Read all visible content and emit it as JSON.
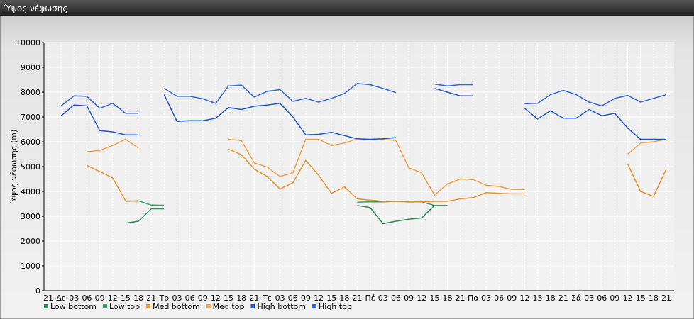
{
  "chart_data": {
    "type": "line",
    "title": "Ύψος νέφωσης",
    "ylabel": "Ύψος νέφωσης (m)",
    "categories": [
      "21",
      "Δε",
      "03",
      "06",
      "09",
      "12",
      "15",
      "18",
      "21",
      "Τρ",
      "03",
      "06",
      "09",
      "12",
      "15",
      "18",
      "21",
      "Τε",
      "03",
      "06",
      "09",
      "12",
      "15",
      "18",
      "21",
      "Πέ",
      "03",
      "06",
      "09",
      "12",
      "15",
      "18",
      "21",
      "Πα",
      "03",
      "06",
      "09",
      "12",
      "15",
      "18",
      "21",
      "Σά",
      "03",
      "06",
      "09",
      "12",
      "15",
      "18",
      "21"
    ],
    "ylim": [
      0,
      10000
    ],
    "yticks": [
      0,
      1000,
      2000,
      3000,
      4000,
      5000,
      6000,
      7000,
      8000,
      9000,
      10000
    ],
    "grid": true,
    "series": [
      {
        "name": "Low bottom",
        "color": "#2e8b57",
        "values": [
          null,
          null,
          null,
          null,
          null,
          null,
          2720,
          2800,
          3300,
          3300,
          null,
          null,
          null,
          null,
          null,
          null,
          null,
          null,
          null,
          null,
          null,
          null,
          null,
          null,
          3430,
          3350,
          2700,
          2800,
          2880,
          2930,
          3430,
          3430,
          null,
          null,
          null,
          null,
          null,
          null,
          null,
          null,
          null,
          null,
          null,
          null,
          null,
          null,
          null,
          null,
          null
        ]
      },
      {
        "name": "Low top",
        "color": "#3a9a66",
        "values": [
          null,
          null,
          null,
          null,
          null,
          null,
          3600,
          3620,
          3450,
          3440,
          null,
          null,
          null,
          null,
          null,
          null,
          null,
          null,
          null,
          null,
          null,
          null,
          null,
          null,
          3570,
          3580,
          3580,
          3600,
          3580,
          3580,
          3430,
          3430,
          null,
          null,
          null,
          null,
          null,
          null,
          null,
          null,
          null,
          null,
          null,
          null,
          null,
          null,
          null,
          null,
          null
        ]
      },
      {
        "name": "Med bottom",
        "color": "#e8922e",
        "values": [
          null,
          null,
          null,
          5050,
          4800,
          4550,
          3620,
          3600,
          null,
          null,
          null,
          null,
          null,
          null,
          5700,
          5480,
          4900,
          4600,
          4100,
          4350,
          5250,
          4650,
          3920,
          4180,
          3700,
          3650,
          3600,
          3600,
          3600,
          3580,
          3600,
          3600,
          3700,
          3750,
          3950,
          3920,
          3900,
          3900,
          null,
          null,
          null,
          null,
          null,
          null,
          null,
          5100,
          4000,
          3800,
          4900
        ]
      },
      {
        "name": "Med top",
        "color": "#f0a04a",
        "values": [
          null,
          null,
          null,
          5600,
          5650,
          5850,
          6100,
          5750,
          null,
          null,
          null,
          null,
          null,
          null,
          6100,
          6050,
          5150,
          4980,
          4600,
          4750,
          6100,
          6100,
          5850,
          5950,
          6120,
          6100,
          6100,
          6050,
          4950,
          4750,
          3850,
          4300,
          4500,
          4480,
          4250,
          4200,
          4080,
          4080,
          null,
          null,
          null,
          null,
          null,
          null,
          null,
          5500,
          5950,
          6000,
          6100
        ]
      },
      {
        "name": "High bottom",
        "color": "#2255cc",
        "values": [
          null,
          7050,
          7480,
          7450,
          6450,
          6400,
          6280,
          6280,
          null,
          7900,
          6820,
          6850,
          6850,
          6950,
          7380,
          7300,
          7430,
          7480,
          7550,
          7000,
          6280,
          6300,
          6380,
          6250,
          6120,
          6100,
          6120,
          6170,
          null,
          null,
          8150,
          8000,
          7850,
          7850,
          null,
          null,
          null,
          7350,
          6920,
          7250,
          6950,
          6950,
          7300,
          7050,
          7150,
          6550,
          6100,
          6100,
          6100
        ]
      },
      {
        "name": "High top",
        "color": "#3366dd",
        "values": [
          null,
          7450,
          7850,
          7830,
          7350,
          7550,
          7150,
          7150,
          null,
          8150,
          7830,
          7830,
          7730,
          7550,
          8250,
          8280,
          7800,
          8030,
          8100,
          7630,
          7750,
          7600,
          7750,
          7950,
          8350,
          8300,
          8150,
          7980,
          null,
          null,
          8320,
          8250,
          8300,
          8300,
          null,
          null,
          null,
          7530,
          7550,
          7900,
          8070,
          7900,
          7600,
          7450,
          7750,
          7870,
          7600,
          7750,
          7900
        ]
      }
    ]
  }
}
